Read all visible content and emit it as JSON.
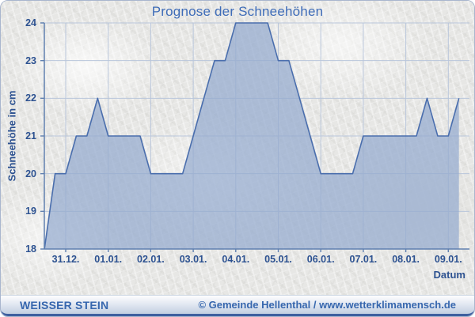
{
  "header": {
    "title": "Prognose der Schneehöhen"
  },
  "chart_data": {
    "type": "area",
    "title": "Prognose der Schneehöhen",
    "xlabel": "Datum",
    "ylabel": "Schneehöhe in cm",
    "ylim": [
      18,
      24
    ],
    "grid": true,
    "legend": "none",
    "y_ticks": [
      24,
      23,
      22,
      21,
      20,
      19,
      18
    ],
    "x_tick_labels": [
      "31.12.",
      "01.01.",
      "02.01.",
      "03.01.",
      "04.01.",
      "05.01.",
      "06.01.",
      "07.01.",
      "08.01.",
      "09.01."
    ],
    "series": [
      {
        "name": "Schneehöhe in cm",
        "x_days_from_31_12": [
          -0.5,
          -0.25,
          0,
          0.25,
          0.5,
          0.75,
          1,
          1.25,
          1.5,
          1.75,
          2,
          2.25,
          2.5,
          2.75,
          3,
          3.25,
          3.5,
          3.75,
          4,
          4.25,
          4.5,
          4.75,
          5,
          5.25,
          5.5,
          5.75,
          6,
          6.25,
          6.5,
          6.75,
          7,
          7.25,
          7.5,
          7.75,
          8,
          8.25,
          8.5,
          8.75,
          9,
          9.25
        ],
        "values": [
          18,
          20,
          20,
          21,
          21,
          22,
          21,
          21,
          21,
          21,
          20,
          20,
          20,
          20,
          21,
          22,
          23,
          23,
          24,
          24,
          24,
          24,
          23,
          23,
          22,
          21,
          20,
          20,
          20,
          20,
          21,
          21,
          21,
          21,
          21,
          21,
          22,
          21,
          21,
          22
        ]
      }
    ],
    "colors": {
      "fill": "rgba(148,170,206,0.72)",
      "line": "#4a6ead",
      "grid": "#b9c6db",
      "axis": "#6080b0",
      "tick_text": "#2d5291",
      "title_text": "#3e6cb8"
    }
  },
  "footer": {
    "left": "WEISSER STEIN",
    "right": "© Gemeinde Hellenthal / www.wetterklimamensch.de"
  }
}
